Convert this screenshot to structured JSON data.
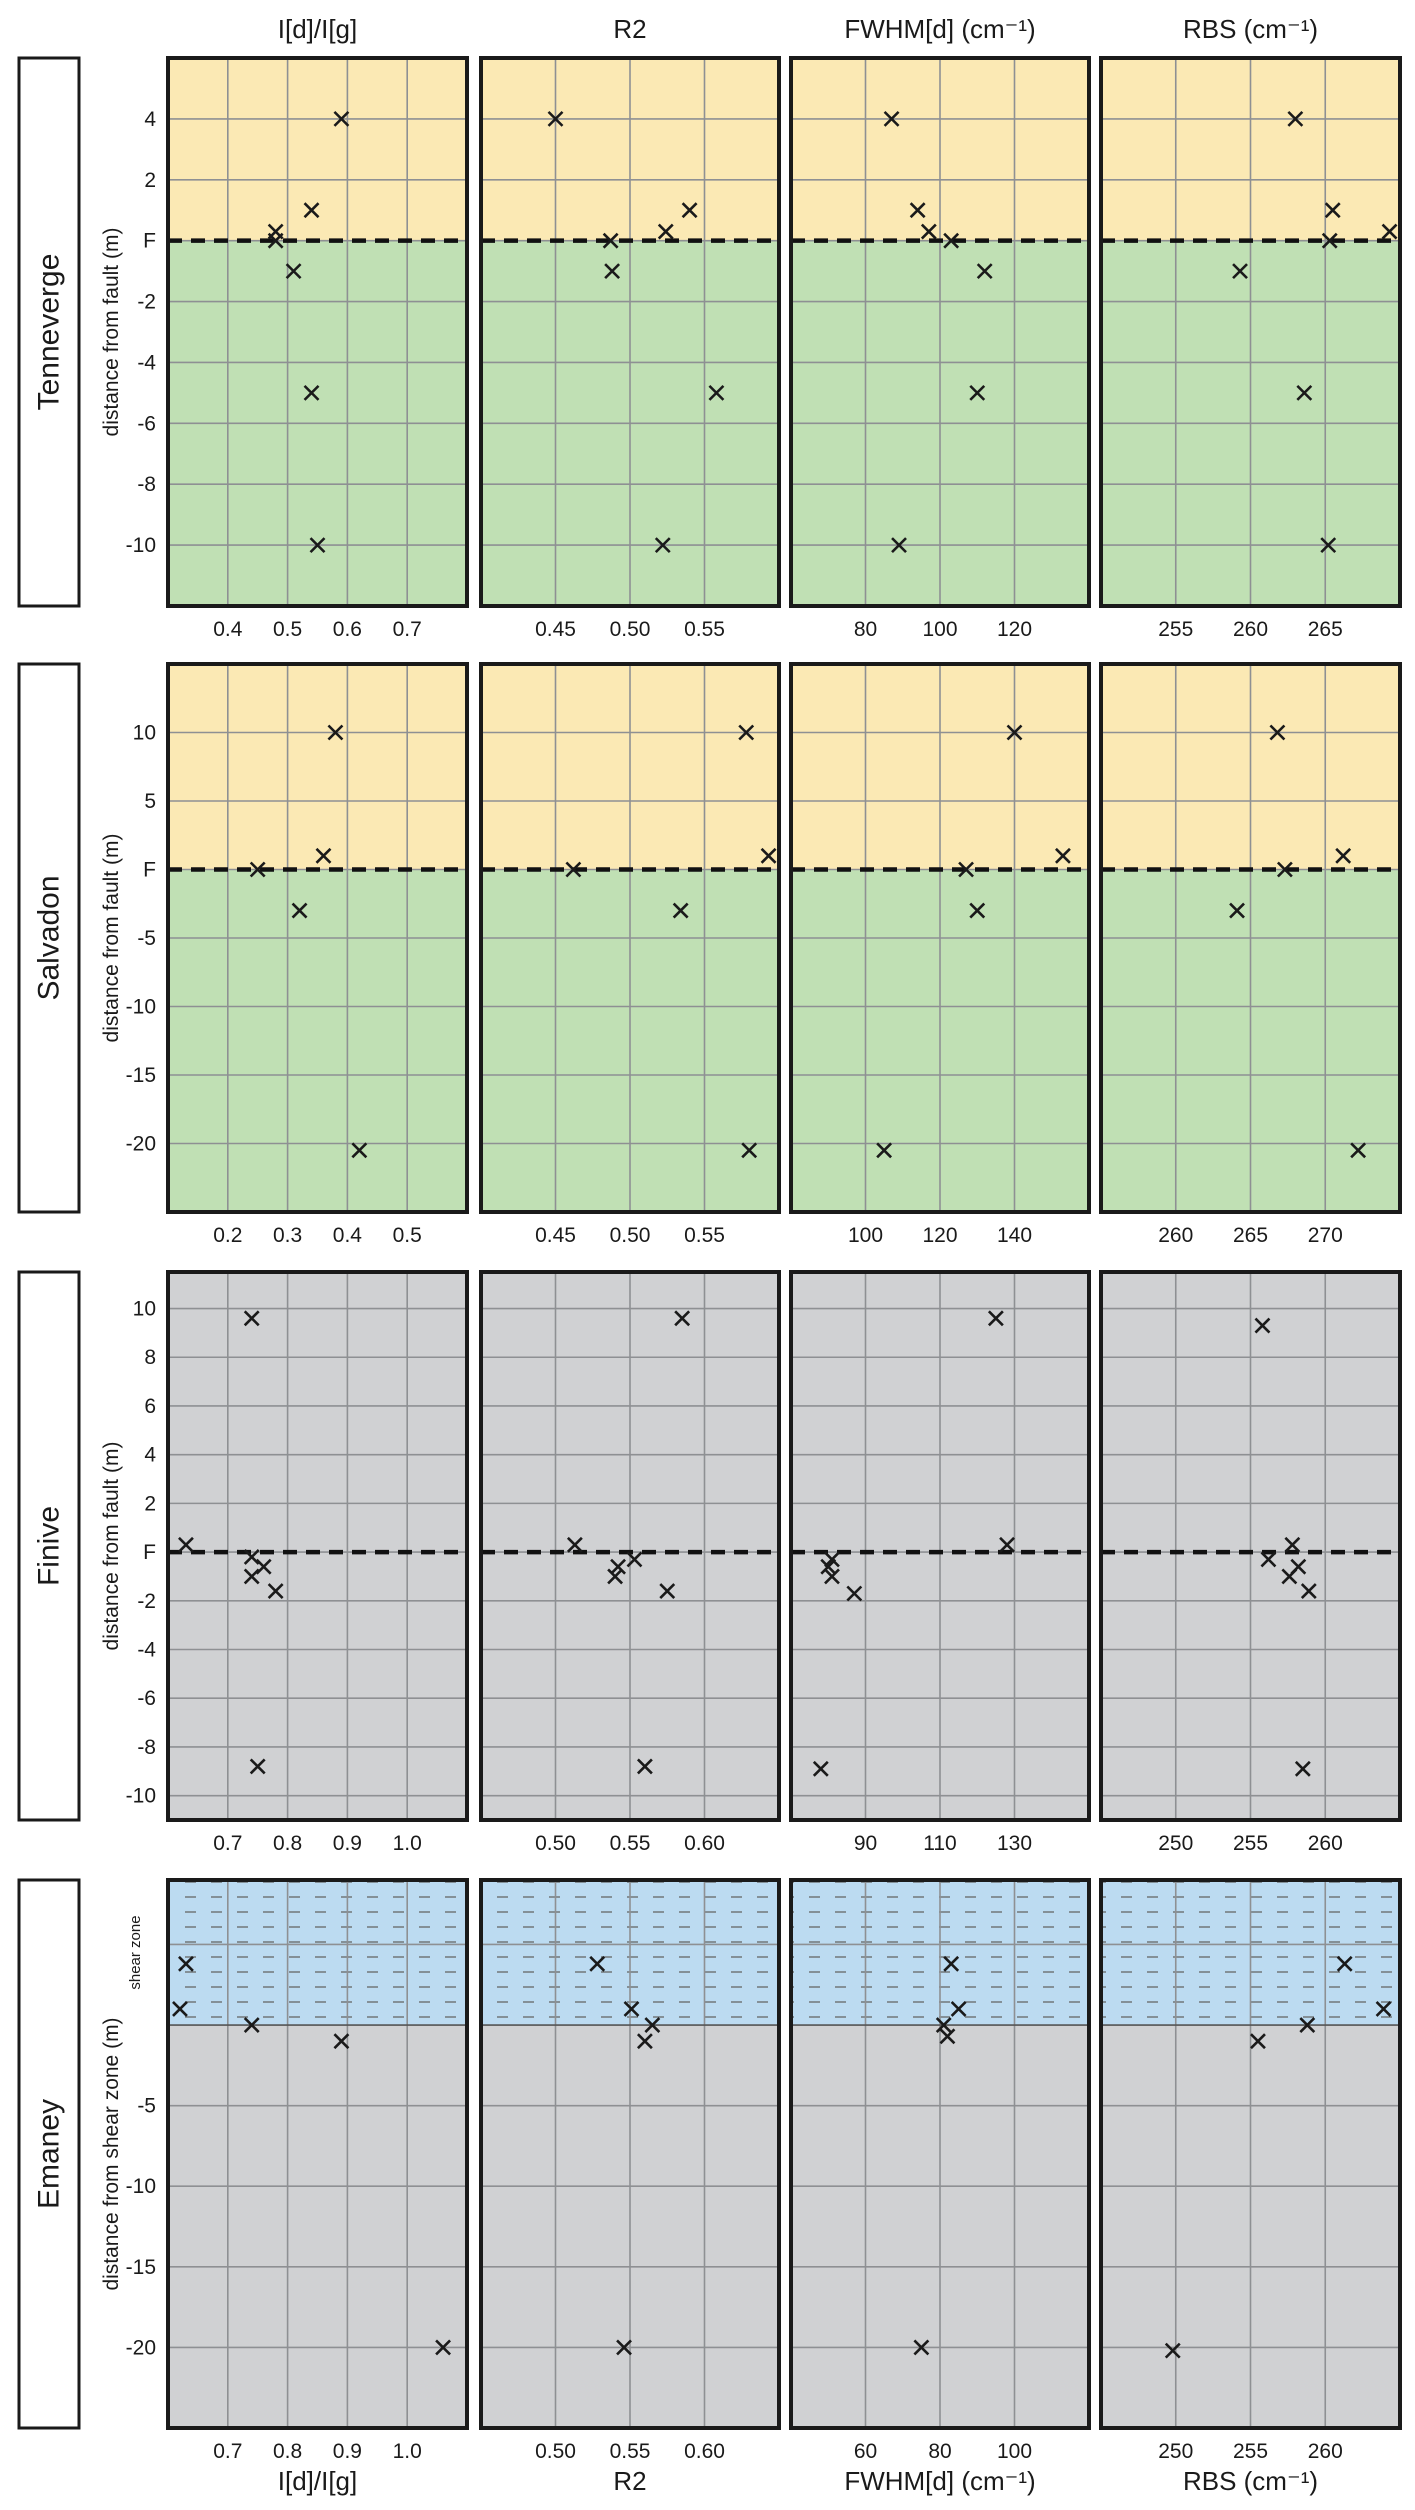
{
  "figure": {
    "column_headers_top": [
      "I[d]/I[g]",
      "R2",
      "FWHM[d] (cm⁻¹)",
      "RBS (cm⁻¹)"
    ],
    "column_headers_bottom": [
      "I[d]/I[g]",
      "R2",
      "FWHM[d] (cm⁻¹)",
      "RBS (cm⁻¹)"
    ],
    "colors": {
      "hanging_wall": "#fbe9b4",
      "footwall": "#c0e0b4",
      "gray_zone": "#d0d1d3",
      "shear_zone": "#bcdbf1",
      "grid": "#8e9093",
      "frame": "#1a1a1a",
      "marker": "#1a1a1a"
    }
  },
  "chart_data": [
    {
      "type": "scatter",
      "row": "Tenneverge",
      "ylabel": "distance from fault (m)",
      "ylim": [
        -12,
        6
      ],
      "yticks": [
        4,
        2,
        0,
        -2,
        -4,
        -6,
        -8,
        -10
      ],
      "ytick_labels": [
        "4",
        "2",
        "F",
        "-2",
        "-4",
        "-6",
        "-8",
        "-10"
      ],
      "zones": [
        {
          "from": 0,
          "to": 6,
          "color": "hanging_wall"
        },
        {
          "from": -12,
          "to": 0,
          "color": "footwall"
        }
      ],
      "fault_line": 0,
      "panels": [
        {
          "xlabel": "I[d]/I[g]",
          "xlim": [
            0.3,
            0.8
          ],
          "xticks": [
            0.4,
            0.5,
            0.6,
            0.7
          ],
          "xtick_labels": [
            "0.4",
            "0.5",
            "0.6",
            "0.7"
          ],
          "xgrid": [
            0.4,
            0.5,
            0.6,
            0.7
          ],
          "points": [
            [
              0.59,
              4
            ],
            [
              0.54,
              1
            ],
            [
              0.48,
              0.3
            ],
            [
              0.48,
              0
            ],
            [
              0.51,
              -1
            ],
            [
              0.54,
              -5
            ],
            [
              0.55,
              -10
            ]
          ]
        },
        {
          "xlabel": "R2",
          "xlim": [
            0.4,
            0.6
          ],
          "xticks": [
            0.45,
            0.5,
            0.55
          ],
          "xtick_labels": [
            "0.45",
            "0.50",
            "0.55"
          ],
          "xgrid": [
            0.45,
            0.5,
            0.55
          ],
          "points": [
            [
              0.45,
              4
            ],
            [
              0.54,
              1
            ],
            [
              0.524,
              0.3
            ],
            [
              0.487,
              0
            ],
            [
              0.488,
              -1
            ],
            [
              0.558,
              -5
            ],
            [
              0.522,
              -10
            ]
          ]
        },
        {
          "xlabel": "FWHM[d] (cm⁻¹)",
          "xlim": [
            60,
            140
          ],
          "xticks": [
            80,
            100,
            120
          ],
          "xtick_labels": [
            "80",
            "100",
            "120"
          ],
          "xgrid": [
            80,
            100,
            120
          ],
          "points": [
            [
              87,
              4
            ],
            [
              94,
              1
            ],
            [
              97,
              0.3
            ],
            [
              103,
              0
            ],
            [
              112,
              -1
            ],
            [
              110,
              -5
            ],
            [
              89,
              -10
            ]
          ]
        },
        {
          "xlabel": "RBS (cm⁻¹)",
          "xlim": [
            250,
            270
          ],
          "xticks": [
            255,
            260,
            265
          ],
          "xtick_labels": [
            "255",
            "260",
            "265"
          ],
          "xgrid": [
            255,
            260,
            265
          ],
          "points": [
            [
              263.0,
              4
            ],
            [
              265.5,
              1
            ],
            [
              265.3,
              0
            ],
            [
              269.3,
              0.3
            ],
            [
              259.3,
              -1
            ],
            [
              263.6,
              -5
            ],
            [
              265.2,
              -10
            ]
          ]
        }
      ]
    },
    {
      "type": "scatter",
      "row": "Salvadon",
      "ylabel": "distance from fault (m)",
      "ylim": [
        -25,
        15
      ],
      "yticks": [
        10,
        5,
        0,
        -5,
        -10,
        -15,
        -20
      ],
      "ytick_labels": [
        "10",
        "5",
        "F",
        "-5",
        "-10",
        "-15",
        "-20"
      ],
      "zones": [
        {
          "from": 0,
          "to": 15,
          "color": "hanging_wall"
        },
        {
          "from": -25,
          "to": 0,
          "color": "footwall"
        }
      ],
      "fault_line": 0,
      "panels": [
        {
          "xlabel": "I[d]/I[g]",
          "xlim": [
            0.1,
            0.6
          ],
          "xticks": [
            0.2,
            0.3,
            0.4,
            0.5
          ],
          "xtick_labels": [
            "0.2",
            "0.3",
            "0.4",
            "0.5"
          ],
          "xgrid": [
            0.2,
            0.3,
            0.4,
            0.5
          ],
          "points": [
            [
              0.38,
              10
            ],
            [
              0.36,
              1
            ],
            [
              0.25,
              0
            ],
            [
              0.32,
              -3
            ],
            [
              0.42,
              -20.5
            ]
          ]
        },
        {
          "xlabel": "R2",
          "xlim": [
            0.4,
            0.6
          ],
          "xticks": [
            0.45,
            0.5,
            0.55
          ],
          "xtick_labels": [
            "0.45",
            "0.50",
            "0.55"
          ],
          "xgrid": [
            0.45,
            0.5,
            0.55
          ],
          "points": [
            [
              0.578,
              10
            ],
            [
              0.593,
              1
            ],
            [
              0.462,
              0
            ],
            [
              0.534,
              -3
            ],
            [
              0.58,
              -20.5
            ]
          ]
        },
        {
          "xlabel": "FWHM[d] (cm⁻¹)",
          "xlim": [
            80,
            160
          ],
          "xticks": [
            100,
            120,
            140
          ],
          "xtick_labels": [
            "100",
            "120",
            "140"
          ],
          "xgrid": [
            100,
            120,
            140
          ],
          "points": [
            [
              140,
              10
            ],
            [
              153,
              1
            ],
            [
              127,
              0
            ],
            [
              130,
              -3
            ],
            [
              105,
              -20.5
            ]
          ]
        },
        {
          "xlabel": "RBS (cm⁻¹)",
          "xlim": [
            255,
            275
          ],
          "xticks": [
            260,
            265,
            270
          ],
          "xtick_labels": [
            "260",
            "265",
            "270"
          ],
          "xgrid": [
            260,
            265,
            270
          ],
          "points": [
            [
              266.8,
              10
            ],
            [
              271.2,
              1
            ],
            [
              267.3,
              0
            ],
            [
              264.1,
              -3
            ],
            [
              272.2,
              -20.5
            ]
          ]
        }
      ]
    },
    {
      "type": "scatter",
      "row": "Finive",
      "ylabel": "distance from fault (m)",
      "ylim": [
        -11,
        11.5
      ],
      "yticks": [
        10,
        8,
        6,
        4,
        2,
        0,
        -2,
        -4,
        -6,
        -8,
        -10
      ],
      "ytick_labels": [
        "10",
        "8",
        "6",
        "4",
        "2",
        "F",
        "-2",
        "-4",
        "-6",
        "-8",
        "-10"
      ],
      "zones": [
        {
          "from": -11,
          "to": 11.5,
          "color": "gray_zone"
        }
      ],
      "fault_line": 0,
      "panels": [
        {
          "xlabel": "I[d]/I[g]",
          "xlim": [
            0.6,
            1.1
          ],
          "xticks": [
            0.7,
            0.8,
            0.9,
            1.0
          ],
          "xtick_labels": [
            "0.7",
            "0.8",
            "0.9",
            "1.0"
          ],
          "xgrid": [
            0.7,
            0.8,
            0.9,
            1.0
          ],
          "points": [
            [
              0.74,
              9.6
            ],
            [
              0.63,
              0.3
            ],
            [
              0.74,
              -0.2
            ],
            [
              0.76,
              -0.6
            ],
            [
              0.74,
              -1.0
            ],
            [
              0.78,
              -1.6
            ],
            [
              0.75,
              -8.8
            ]
          ]
        },
        {
          "xlabel": "R2",
          "xlim": [
            0.45,
            0.65
          ],
          "xticks": [
            0.5,
            0.55,
            0.6
          ],
          "xtick_labels": [
            "0.50",
            "0.55",
            "0.60"
          ],
          "xgrid": [
            0.5,
            0.55,
            0.6
          ],
          "points": [
            [
              0.585,
              9.6
            ],
            [
              0.513,
              0.3
            ],
            [
              0.542,
              -0.6
            ],
            [
              0.553,
              -0.3
            ],
            [
              0.54,
              -1.0
            ],
            [
              0.575,
              -1.6
            ],
            [
              0.56,
              -8.8
            ]
          ]
        },
        {
          "xlabel": "FWHM[d] (cm⁻¹)",
          "xlim": [
            70,
            150
          ],
          "xticks": [
            90,
            110,
            130
          ],
          "xtick_labels": [
            "90",
            "110",
            "130"
          ],
          "xgrid": [
            90,
            110,
            130
          ],
          "points": [
            [
              125,
              9.6
            ],
            [
              128,
              0.3
            ],
            [
              81,
              -0.3
            ],
            [
              80,
              -0.6
            ],
            [
              81,
              -1.0
            ],
            [
              87,
              -1.7
            ],
            [
              78,
              -8.9
            ]
          ]
        },
        {
          "xlabel": "RBS (cm⁻¹)",
          "xlim": [
            245,
            265
          ],
          "xticks": [
            250,
            255,
            260
          ],
          "xtick_labels": [
            "250",
            "255",
            "260"
          ],
          "xgrid": [
            250,
            255,
            260
          ],
          "points": [
            [
              255.8,
              9.3
            ],
            [
              257.8,
              0.3
            ],
            [
              256.2,
              -0.3
            ],
            [
              258.2,
              -0.6
            ],
            [
              257.6,
              -1.0
            ],
            [
              258.9,
              -1.6
            ],
            [
              258.5,
              -8.9
            ]
          ]
        }
      ]
    },
    {
      "type": "scatter",
      "row": "Emaney",
      "ylabel": "distance from shear zone (m)",
      "zone_label": "shear zone",
      "ylim": [
        -25,
        9
      ],
      "yticks": [
        -5,
        -10,
        -15,
        -20
      ],
      "ytick_labels": [
        "-5",
        "-10",
        "-15",
        "-20"
      ],
      "zones": [
        {
          "from": 0,
          "to": 9,
          "color": "shear_zone"
        },
        {
          "from": -25,
          "to": 0,
          "color": "gray_zone"
        }
      ],
      "hatch_zone": [
        0,
        9
      ],
      "zone_divider": 5,
      "fault_line": null,
      "panels": [
        {
          "xlabel": "I[d]/I[g]",
          "xlim": [
            0.6,
            1.1
          ],
          "xticks": [
            0.7,
            0.8,
            0.9,
            1.0
          ],
          "xtick_labels": [
            "0.7",
            "0.8",
            "0.9",
            "1.0"
          ],
          "xgrid": [
            0.7,
            0.8,
            0.9,
            1.0
          ],
          "points": [
            [
              0.63,
              3.8
            ],
            [
              0.62,
              1
            ],
            [
              0.74,
              0
            ],
            [
              0.89,
              -1
            ],
            [
              1.06,
              -20
            ]
          ]
        },
        {
          "xlabel": "R2",
          "xlim": [
            0.45,
            0.65
          ],
          "xticks": [
            0.5,
            0.55,
            0.6
          ],
          "xtick_labels": [
            "0.50",
            "0.55",
            "0.60"
          ],
          "xgrid": [
            0.5,
            0.55,
            0.6
          ],
          "points": [
            [
              0.528,
              3.8
            ],
            [
              0.551,
              1
            ],
            [
              0.565,
              0
            ],
            [
              0.56,
              -1
            ],
            [
              0.546,
              -20
            ]
          ]
        },
        {
          "xlabel": "FWHM[d] (cm⁻¹)",
          "xlim": [
            40,
            120
          ],
          "xticks": [
            60,
            80,
            100
          ],
          "xtick_labels": [
            "60",
            "80",
            "100"
          ],
          "xgrid": [
            60,
            80,
            100
          ],
          "points": [
            [
              83,
              3.8
            ],
            [
              85,
              1
            ],
            [
              81,
              0
            ],
            [
              82,
              -0.7
            ],
            [
              75,
              -20
            ]
          ]
        },
        {
          "xlabel": "RBS (cm⁻¹)",
          "xlim": [
            245,
            265
          ],
          "xticks": [
            250,
            255,
            260
          ],
          "xtick_labels": [
            "250",
            "255",
            "260"
          ],
          "xgrid": [
            250,
            255,
            260
          ],
          "points": [
            [
              261.3,
              3.8
            ],
            [
              263.9,
              1
            ],
            [
              258.8,
              0
            ],
            [
              255.5,
              -1
            ],
            [
              249.8,
              -20.2
            ]
          ]
        }
      ]
    }
  ]
}
